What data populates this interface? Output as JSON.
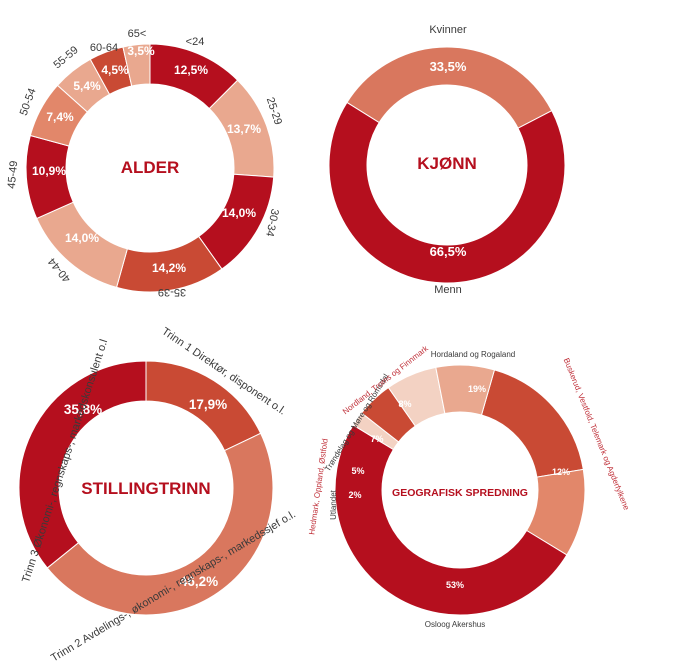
{
  "colors": {
    "dark": "#b50f1e",
    "mid": "#c94a34",
    "light": "#e2876a",
    "lighter": "#e9a88f",
    "palest": "#f3d2c3",
    "geo_label_red": "#c0313a"
  },
  "chart_data": [
    {
      "type": "pie",
      "title": "ALDER",
      "categories": [
        "<24",
        "25-29",
        "30-34",
        "35-39",
        "40-44",
        "45-49",
        "50-54",
        "55-59",
        "60-64",
        "65<"
      ],
      "values": [
        12.5,
        13.7,
        14.0,
        14.2,
        14.0,
        10.9,
        7.4,
        5.4,
        4.5,
        3.5
      ],
      "value_labels": [
        "12,5%",
        "13,7%",
        "14,0%",
        "14,2%",
        "14,0%",
        "10,9%",
        "7,4%",
        "5,4%",
        "4,5%",
        "3,5%"
      ],
      "colors": [
        "#b50f1e",
        "#e9a88f",
        "#b50f1e",
        "#c94a34",
        "#e9a88f",
        "#b50f1e",
        "#e2876a",
        "#e9a88f",
        "#c94a34",
        "#e9a88f"
      ]
    },
    {
      "type": "pie",
      "title": "KJØNN",
      "categories": [
        "Kvinner",
        "Menn"
      ],
      "values": [
        33.5,
        66.5
      ],
      "value_labels": [
        "33,5%",
        "66,5%"
      ],
      "colors": [
        "#d9775e",
        "#b50f1e"
      ]
    },
    {
      "type": "pie",
      "title": "STILLINGTRINN",
      "categories": [
        "Trinn 1 Direktør, disponent o.l.",
        "Trinn 2 Avdelings-, økonomi-, regnskaps-, markedssjef o.l.",
        "Trinn 3 Økonomi-, regnskaps-, markedskonsulent o.l"
      ],
      "values": [
        17.9,
        46.2,
        35.8
      ],
      "value_labels": [
        "17,9%",
        "46,2%",
        "35,8%"
      ],
      "colors": [
        "#c94a34",
        "#d9775e",
        "#b50f1e"
      ]
    },
    {
      "type": "pie",
      "title": "GEOGRAFISK SPREDNING",
      "categories": [
        "Hordaland og Rogaland",
        "Buskerud, Vestfold, Telemark og Agderfylkene",
        "Osloog Akershus",
        "Utlandet",
        "Hedmark, Oppland, Østfold",
        "Trøndelag og Møre og Romsdal",
        "Nordland, Troms og Finnmark"
      ],
      "values": [
        19,
        12,
        53,
        2,
        5,
        7,
        8
      ],
      "value_labels": [
        "19%",
        "12%",
        "53%",
        "2%",
        "5%",
        "7%",
        "8%"
      ],
      "colors": [
        "#c94a34",
        "#e2876a",
        "#b50f1e",
        "#f3d2c3",
        "#c94a34",
        "#f3d2c3",
        "#e9a88f"
      ]
    }
  ]
}
